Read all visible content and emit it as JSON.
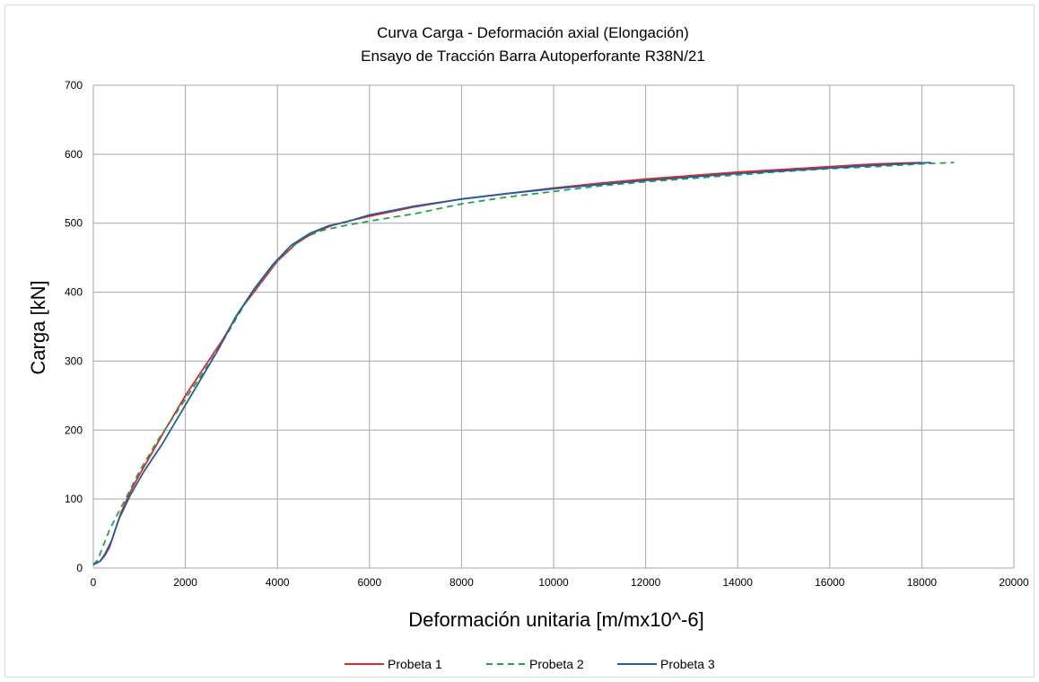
{
  "chart_data": {
    "type": "line",
    "title": "Curva Carga - Deformación axial (Elongación)",
    "subtitle": "Ensayo de Tracción Barra Autoperforante R38N/21",
    "xlabel": "Deformación unitaria [m/mx10^-6]",
    "ylabel": "Carga [kN]",
    "xlim": [
      0,
      20000
    ],
    "ylim": [
      0,
      700
    ],
    "xticks": [
      0,
      2000,
      4000,
      6000,
      8000,
      10000,
      12000,
      14000,
      16000,
      18000,
      20000
    ],
    "yticks": [
      0,
      100,
      200,
      300,
      400,
      500,
      600,
      700
    ],
    "grid": true,
    "legend_position": "bottom",
    "series": [
      {
        "name": "Probeta 1",
        "color": "#e8222a",
        "dash": "solid",
        "points": [
          [
            0,
            5
          ],
          [
            150,
            10
          ],
          [
            250,
            18
          ],
          [
            350,
            30
          ],
          [
            450,
            50
          ],
          [
            600,
            80
          ],
          [
            800,
            110
          ],
          [
            1000,
            135
          ],
          [
            1300,
            170
          ],
          [
            1600,
            205
          ],
          [
            2000,
            250
          ],
          [
            2400,
            290
          ],
          [
            2800,
            330
          ],
          [
            3200,
            375
          ],
          [
            3600,
            410
          ],
          [
            4000,
            445
          ],
          [
            4400,
            470
          ],
          [
            4800,
            487
          ],
          [
            5200,
            497
          ],
          [
            5600,
            504
          ],
          [
            6000,
            510
          ],
          [
            7000,
            524
          ],
          [
            8000,
            535
          ],
          [
            9000,
            543
          ],
          [
            10000,
            551
          ],
          [
            11000,
            558
          ],
          [
            12000,
            564
          ],
          [
            13000,
            569
          ],
          [
            14000,
            574
          ],
          [
            15000,
            578
          ],
          [
            16000,
            582
          ],
          [
            17000,
            586
          ],
          [
            18000,
            588
          ]
        ]
      },
      {
        "name": "Probeta 2",
        "color": "#1fa34a",
        "dash": "dashed",
        "points": [
          [
            0,
            5
          ],
          [
            100,
            12
          ],
          [
            200,
            30
          ],
          [
            350,
            55
          ],
          [
            500,
            75
          ],
          [
            700,
            100
          ],
          [
            1000,
            140
          ],
          [
            1400,
            185
          ],
          [
            1800,
            225
          ],
          [
            2200,
            265
          ],
          [
            2600,
            305
          ],
          [
            3000,
            350
          ],
          [
            3400,
            395
          ],
          [
            3800,
            430
          ],
          [
            4200,
            460
          ],
          [
            4600,
            480
          ],
          [
            5000,
            490
          ],
          [
            5500,
            497
          ],
          [
            6000,
            503
          ],
          [
            7000,
            514
          ],
          [
            8000,
            528
          ],
          [
            9000,
            538
          ],
          [
            10000,
            546
          ],
          [
            11000,
            554
          ],
          [
            12000,
            560
          ],
          [
            13000,
            565
          ],
          [
            14000,
            570
          ],
          [
            15000,
            575
          ],
          [
            16000,
            579
          ],
          [
            17000,
            582
          ],
          [
            18000,
            586
          ],
          [
            18700,
            588
          ]
        ]
      },
      {
        "name": "Probeta 3",
        "color": "#1f5fa0",
        "dash": "solid",
        "points": [
          [
            0,
            5
          ],
          [
            150,
            10
          ],
          [
            250,
            20
          ],
          [
            400,
            40
          ],
          [
            550,
            70
          ],
          [
            800,
            105
          ],
          [
            1100,
            140
          ],
          [
            1500,
            180
          ],
          [
            1900,
            225
          ],
          [
            2300,
            270
          ],
          [
            2700,
            315
          ],
          [
            3100,
            365
          ],
          [
            3500,
            405
          ],
          [
            3900,
            440
          ],
          [
            4300,
            468
          ],
          [
            4700,
            485
          ],
          [
            5100,
            496
          ],
          [
            5500,
            502
          ],
          [
            6000,
            512
          ],
          [
            7000,
            525
          ],
          [
            8000,
            535
          ],
          [
            9000,
            543
          ],
          [
            10000,
            550
          ],
          [
            11000,
            556
          ],
          [
            12000,
            562
          ],
          [
            13000,
            567
          ],
          [
            14000,
            572
          ],
          [
            15000,
            576
          ],
          [
            16000,
            580
          ],
          [
            17000,
            584
          ],
          [
            18200,
            588
          ]
        ]
      }
    ]
  }
}
